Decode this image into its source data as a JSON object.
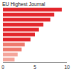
{
  "chart_data": {
    "type": "bar",
    "orientation": "horizontal",
    "title": "EU Highest Journal",
    "categories": [
      null,
      null,
      null,
      null,
      null,
      null,
      null,
      null,
      null,
      null,
      null
    ],
    "values": [
      9.2,
      8.0,
      7.4,
      6.3,
      5.6,
      5.0,
      4.3,
      3.4,
      2.9,
      2.3,
      1.8
    ],
    "colors": [
      "#e3262c",
      "#e3262c",
      "#e3262c",
      "#e3262c",
      "#e3262c",
      "#e3262c",
      "#e3262c",
      "#ef7a6e",
      "#ef7a6e",
      "#f4a59b",
      "#f4a59b"
    ],
    "xlim": [
      0,
      10
    ],
    "xticks": [
      0,
      5,
      10
    ],
    "grid": false,
    "tick_labels": "x"
  }
}
